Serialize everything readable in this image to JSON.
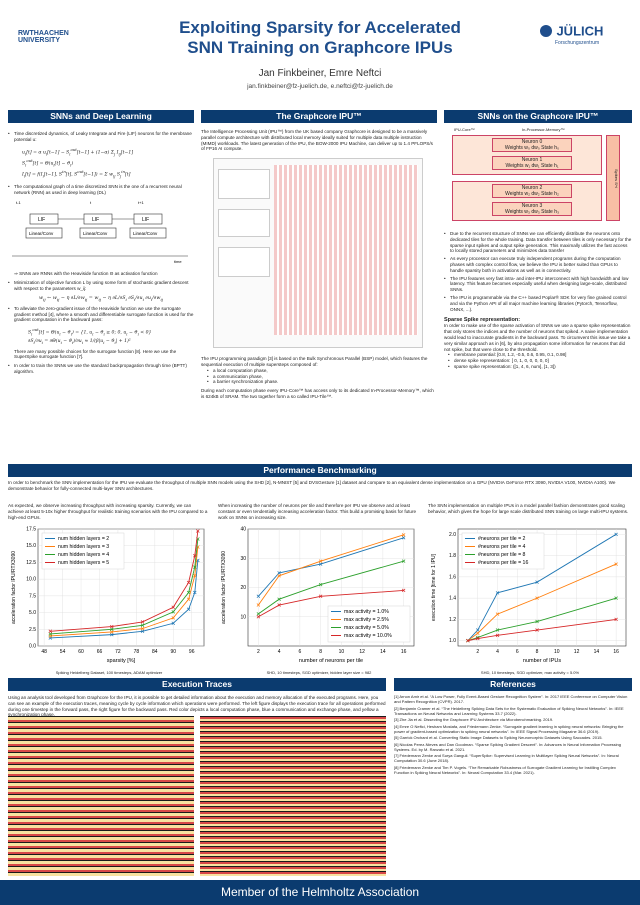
{
  "header": {
    "logo_left": "RWTHAACHEN UNIVERSITY",
    "logo_right": "JÜLICH",
    "logo_right_sub": "Forschungszentrum",
    "title1": "Exploiting Sparsity for Accelerated",
    "title2": "SNN Training on Graphcore IPUs",
    "authors": "Jan Finkbeiner, Emre Neftci",
    "emails": "jan.finkbeiner@fz-juelich.de, e.neftci@fz-juelich.de"
  },
  "snn": {
    "heading": "SNNs and Deep Learning",
    "p1": "Time discretized dynamics, of Leaky Integrate and Fire (LIF) neurons for the membrane potential u:",
    "eq1": "u_i[t] = α u_i[t−1] + ... ",
    "p2": "The computational graph of a time discretized SNN is the one of a recurrent neural network (RNN) as used in deep learning (DL)",
    "lif": "LIF",
    "linconv": "Linear/Conv",
    "time": "time",
    "t1": "t-1",
    "t2": "t",
    "t3": "t+1",
    "p3": "⇒ SNNs are RNNs with the Heaviside function Θ as activation function",
    "p4": "Minimization of objective function L by using some form of stochastic gradient descent with respect to the parameters w_ij:",
    "p5": "To alleviate the zero-gradient issue of the Heaviside function we use the surrogate gradient method [4], where a smooth and differentiable surrogate function is used for the gradient computation in the backward pass:",
    "p6": "There are many possible choices for the surrogate function [8]. Here we use the SuperSpike surrogate function [7].",
    "p7": "In order to train the SNNs we use the standard backpropagation through time (BPTT) algorithm."
  },
  "ipu": {
    "heading": "The Graphcore IPU™",
    "p1": "The Intelligence Processing Unit (IPU™) from the UK based company Graphcore is designed to be a massively parallel compute architecture with distributed local memory ideally suited for multiple data multiple instruction (MIMD) workloads. The latest generation of the IPU, the BOW-2000 IPU Machine, can deliver up to 1.4 PFLOPS/s of FP16 AI compute.",
    "p2": "The IPU programming paradigm [3] is based on the Bulk Synchronous Parallel (BSP) model, which features the sequential execution of multiple supersteps composed of:",
    "b1": "a local computation phase,",
    "b2": "a communication phase,",
    "b3": "a barrier synchronization phase.",
    "p3": "During each computation phase every IPU-Core™ has access only to its dedicated In-Processor-Memory™, which is 624kB of SRAM. The two together form a so called IPU-Tile™."
  },
  "sparse": {
    "heading": "SNNs on the Graphcore IPU™",
    "core": "IPU-Core™",
    "mem": "In-Processor-Memory™",
    "n0": "Neuron 0",
    "n1": "Neuron 1",
    "n2": "Neuron 2",
    "n3": "Neuron 3",
    "w0": "Weights w₀ dw₀  State h₀",
    "w1": "Weights w₁ dw₁  State h₁",
    "w2": "Weights w₂ dw₂  State h₂",
    "w3": "Weights w₃ dw₃  State h₃",
    "spikes": "Spikes S^t",
    "b1": "Due to the recurrent structure of SNNs we can efficiently distribute the neurons onto dedicated tiles for the whole training. Data transfer between tiles is only necessary for the sparse input spikes and output spike generation. This maximally utilizes the fast access to locally stored parameters and minimizes data transfer",
    "b2": "As every processor can execute truly independent programs during the computation phases with complex control flow, we believe the IPU is better suited than GPUs to handle sparsity both in activations as well as in connectivity.",
    "b3": "The IPU features very fast intra- and inter-IPU interconnect with high bandwidth and low latency. This feature becomes especially useful when designing large-scale, distributed SNNs.",
    "b4": "The IPU is programmable via the C++ based Poplar® SDK for very fine grained control and via the Python API of all major machine learning libraries (Pytorch, Tensorflow, ONNX, ...).",
    "h2": "Sparse Spike representation:",
    "p": "In order to make use of the sparse activation of SNNs we use a sparse spike representation that only stores the indices and the number of neurons that spiked. A naive implementation would lead to inaccurate gradients in the backward pass. To circumvent this issue we take a very similar approach as in [6], by also propagation some information for neurons that did not spike, but that were close to the threshold.",
    "s1": "membrane potential: [0.8, 1.2, -0.5, 0.6, 0.95, 0.1, 0.98]",
    "s2": "dense spike representation: [ 0, 1, 0, 0, 0, 0, 0]",
    "s3": "sparse spike representation: ([1, 4, 6, num], [1, 3])"
  },
  "perf": {
    "heading": "Performance Benchmarking",
    "intro": "In order to benchmark the SNN implementation for the IPU we evaluate the throughput of multiple SNN models using the SHD [2], N-MNIST [5] and DVSGesture [1] dataset and compare to an equivalent dense implementation on a GPU (NVIDIA GeForce RTX 3090, NVIDIA V100, NVIDIA A100). We demonstrate behavior for fully-connected multi-layer SNN architectures.",
    "c1": "As expected, we observe increasing throughput with increasing sparsity. Currently, we can achieve at least 5-10x higher throughput for realistic training scenarios with the IPU compared to a high-end GPUs.",
    "c2": "When increasing the number of neurons per tile and therefore per IPU we observe and at least constant or even tendentially increasing acceleration factor. This build a promising basis for future work on SNNs on increasing size.",
    "c3": "The SNN implementation on multiple IPUs in a model parallel fashion demonstrates good scaling behavior, which gives the hope for large scale distributed SNN training on large multi-IPU systems.",
    "cap1": "Spiking Heidelberg Dataset, 100 timesteps, ADAM optimizer",
    "cap2": "SHD, 10 timesteps, SGD optimizer, hidden layer size = 982",
    "cap3": "SHD, 10 timesteps, SGD optimizer, max activity = 5.0%"
  },
  "exec": {
    "heading": "Execution Traces",
    "p": "Using an analysis tool developed from Graphcore for the IPU, it is possible to get detailed information about the execution and memory allocation of the executed programs. Here, you can see an example of the execution traces, meaning cycle by cycle information which operations were performed. The left figure displays the execution trace for all operations performed during one timestep in the forward pass, the right figure for the backward pass. Red color depicts a local computation phase, blue a communication and exchange phase, and yellow a synchronization phase."
  },
  "refs": {
    "heading": "References",
    "items": [
      "[1] Arnon Amir et al. “A Low Power, Fully Event-Based Gesture Recognition System”. In: 2017 IEEE Conference on Computer Vision and Pattern Recognition (CVPR). 2017.",
      "[2] Benjamin Cramer et al. “The Heidelberg Spiking Data Sets for the Systematic Evaluation of Spiking Neural Networks”. In: IEEE Transactions on Neural Networks and Learning Systems 33.7 (2022).",
      "[3] Zhe Jia et al. Dissecting the Graphcore IPU Architecture via Microbenchmarking. 2019.",
      "[4] Emre O Neftci, Hesham Mostafa, and Friedemann Zenke. “Surrogate gradient learning in spiking neural networks: Bringing the power of gradient-based optimization to spiking neural networks”. In: IEEE Signal Processing Magazine 36.6 (2019).",
      "[5] Garrick Orchard et al. Converting Static Image Datasets to Spiking Neuromorphic Datasets Using Saccades. 2015.",
      "[6] Nicolas Perez-Nieves and Dan Goodman. “Sparse Spiking Gradient Descent”. In: Advances in Neural Information Processing Systems. Ed. by M. Ranzato et al. 2021.",
      "[7] Friedemann Zenke and Surya Ganguli. “SuperSpike: Supervised Learning in Multilayer Spiking Neural Networks”. In: Neural Computation 30.6 (June 2018).",
      "[8] Friedemann Zenke and Tim P. Vogels. “The Remarkable Robustness of Surrogate Gradient Learning for Instilling Complex Function in Spiking Neural Networks”. In: Neural Computation 33.4 (Mar. 2021)."
    ]
  },
  "footer": "Member of the Helmholtz Association",
  "chart_data": [
    {
      "type": "line",
      "xlabel": "sparsity [%]",
      "ylabel": "acceleration factor IPU/RTX3090",
      "ylim": [
        0,
        17.5
      ],
      "xticks": [
        "48",
        "54",
        "60",
        "66",
        "72",
        "78",
        "84",
        "90",
        "96"
      ],
      "yticks": [
        "0.0",
        "2.5",
        "5.0",
        "7.5",
        "10.0",
        "12.5",
        "15.0",
        "17.5"
      ],
      "series": [
        {
          "name": "num hidden layers = 2",
          "color": "#1f77b4",
          "x": [
            50,
            70,
            80,
            90,
            95,
            97,
            98
          ],
          "y": [
            1.2,
            1.7,
            2.2,
            3.4,
            5.5,
            8,
            12.8
          ]
        },
        {
          "name": "num hidden layers = 3",
          "color": "#ff7f0e",
          "x": [
            50,
            70,
            80,
            90,
            95,
            97,
            98
          ],
          "y": [
            1.5,
            2.1,
            2.6,
            4.2,
            7,
            10.5,
            14.8
          ]
        },
        {
          "name": "num hidden layers = 4",
          "color": "#2ca02c",
          "x": [
            50,
            70,
            80,
            90,
            95,
            97,
            98
          ],
          "y": [
            1.8,
            2.5,
            3.1,
            5.1,
            8,
            11.8,
            16
          ]
        },
        {
          "name": "num hidden layers = 5",
          "color": "#d62728",
          "x": [
            50,
            70,
            80,
            90,
            95,
            97,
            98
          ],
          "y": [
            2.2,
            2.9,
            3.6,
            5.8,
            9.5,
            13.5,
            17.2
          ]
        }
      ]
    },
    {
      "type": "line",
      "xlabel": "number of neurons per tile",
      "ylabel": "acceleration factor IPU/RTX3090",
      "ylim": [
        0,
        40
      ],
      "xticks": [
        "2",
        "4",
        "6",
        "8",
        "10",
        "12",
        "14",
        "16"
      ],
      "yticks": [
        "10",
        "20",
        "30",
        "40"
      ],
      "series": [
        {
          "name": "max activity = 1.0%",
          "color": "#1f77b4",
          "x": [
            2,
            4,
            8,
            16
          ],
          "y": [
            17,
            25,
            28,
            37
          ]
        },
        {
          "name": "max activity = 2.5%",
          "color": "#ff7f0e",
          "x": [
            2,
            4,
            8,
            16
          ],
          "y": [
            14,
            24,
            29,
            38
          ]
        },
        {
          "name": "max activity = 5.0%",
          "color": "#2ca02c",
          "x": [
            2,
            4,
            8,
            16
          ],
          "y": [
            11,
            16,
            21,
            29
          ]
        },
        {
          "name": "max activity = 10.0%",
          "color": "#d62728",
          "x": [
            2,
            4,
            8,
            16
          ],
          "y": [
            10,
            14,
            17,
            19
          ]
        }
      ]
    },
    {
      "type": "line",
      "xlabel": "number of IPUs",
      "ylabel": "execution time [time for 1 IPU]",
      "ylim": [
        0.95,
        2.05
      ],
      "xticks": [
        "2",
        "4",
        "6",
        "8",
        "10",
        "12",
        "14",
        "16"
      ],
      "yticks": [
        "1.0",
        "1.2",
        "1.4",
        "1.6",
        "1.8",
        "2.0"
      ],
      "series": [
        {
          "name": "#neurons per tile = 2",
          "color": "#1f77b4",
          "x": [
            1,
            2,
            4,
            8,
            16
          ],
          "y": [
            1,
            1.1,
            1.45,
            1.55,
            2.0
          ]
        },
        {
          "name": "#neurons per tile = 4",
          "color": "#ff7f0e",
          "x": [
            1,
            2,
            4,
            8,
            16
          ],
          "y": [
            1,
            1.07,
            1.25,
            1.4,
            1.72
          ]
        },
        {
          "name": "#neurons per tile = 8",
          "color": "#2ca02c",
          "x": [
            1,
            2,
            4,
            8,
            16
          ],
          "y": [
            1,
            1.03,
            1.1,
            1.18,
            1.4
          ]
        },
        {
          "name": "#neurons per tile = 16",
          "color": "#d62728",
          "x": [
            1,
            2,
            4,
            8,
            16
          ],
          "y": [
            1,
            1.02,
            1.05,
            1.1,
            1.2
          ]
        }
      ]
    }
  ]
}
